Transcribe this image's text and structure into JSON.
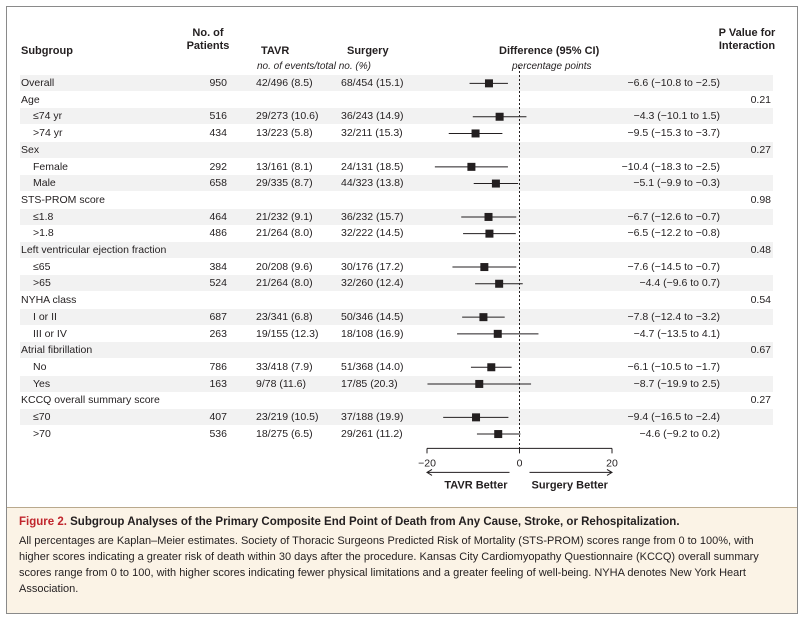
{
  "headers": {
    "subgroup": "Subgroup",
    "patients": "No. of\nPatients",
    "tavr": "TAVR",
    "surgery": "Surgery",
    "events_note": "no. of events/total no. (%)",
    "difference": "Difference (95% CI)",
    "diff_note": "percentage points",
    "pvalue": "P Value for\nInteraction"
  },
  "rows": [
    {
      "label": "Overall",
      "indent": false,
      "n": "950",
      "tavr": "42/496 (8.5)",
      "surgery": "68/454 (15.1)",
      "diff": "−6.6 (−10.8 to −2.5)",
      "p": ""
    },
    {
      "label": "Age",
      "indent": false,
      "n": "",
      "tavr": "",
      "surgery": "",
      "diff": "",
      "p": "0.21"
    },
    {
      "label": "≤74 yr",
      "indent": true,
      "n": "516",
      "tavr": "29/273 (10.6)",
      "surgery": "36/243 (14.9)",
      "diff": "−4.3 (−10.1 to 1.5)",
      "p": ""
    },
    {
      "label": ">74 yr",
      "indent": true,
      "n": "434",
      "tavr": "13/223 (5.8)",
      "surgery": "32/211 (15.3)",
      "diff": "−9.5 (−15.3 to −3.7)",
      "p": ""
    },
    {
      "label": "Sex",
      "indent": false,
      "n": "",
      "tavr": "",
      "surgery": "",
      "diff": "",
      "p": "0.27"
    },
    {
      "label": "Female",
      "indent": true,
      "n": "292",
      "tavr": "13/161 (8.1)",
      "surgery": "24/131 (18.5)",
      "diff": "−10.4 (−18.3 to −2.5)",
      "p": ""
    },
    {
      "label": "Male",
      "indent": true,
      "n": "658",
      "tavr": "29/335 (8.7)",
      "surgery": "44/323 (13.8)",
      "diff": "−5.1 (−9.9 to −0.3)",
      "p": ""
    },
    {
      "label": "STS-PROM score",
      "indent": false,
      "n": "",
      "tavr": "",
      "surgery": "",
      "diff": "",
      "p": "0.98"
    },
    {
      "label": "≤1.8",
      "indent": true,
      "n": "464",
      "tavr": "21/232 (9.1)",
      "surgery": "36/232 (15.7)",
      "diff": "−6.7 (−12.6 to −0.7)",
      "p": ""
    },
    {
      "label": ">1.8",
      "indent": true,
      "n": "486",
      "tavr": "21/264 (8.0)",
      "surgery": "32/222 (14.5)",
      "diff": "−6.5 (−12.2 to −0.8)",
      "p": ""
    },
    {
      "label": "Left ventricular ejection fraction",
      "indent": false,
      "n": "",
      "tavr": "",
      "surgery": "",
      "diff": "",
      "p": "0.48"
    },
    {
      "label": "≤65",
      "indent": true,
      "n": "384",
      "tavr": "20/208 (9.6)",
      "surgery": "30/176 (17.2)",
      "diff": "−7.6 (−14.5 to −0.7)",
      "p": ""
    },
    {
      "label": ">65",
      "indent": true,
      "n": "524",
      "tavr": "21/264 (8.0)",
      "surgery": "32/260 (12.4)",
      "diff": "−4.4 (−9.6 to 0.7)",
      "p": ""
    },
    {
      "label": "NYHA class",
      "indent": false,
      "n": "",
      "tavr": "",
      "surgery": "",
      "diff": "",
      "p": "0.54"
    },
    {
      "label": "I or II",
      "indent": true,
      "n": "687",
      "tavr": "23/341 (6.8)",
      "surgery": "50/346 (14.5)",
      "diff": "−7.8 (−12.4 to −3.2)",
      "p": ""
    },
    {
      "label": "III or IV",
      "indent": true,
      "n": "263",
      "tavr": "19/155 (12.3)",
      "surgery": "18/108 (16.9)",
      "diff": "−4.7 (−13.5 to 4.1)",
      "p": ""
    },
    {
      "label": "Atrial fibrillation",
      "indent": false,
      "n": "",
      "tavr": "",
      "surgery": "",
      "diff": "",
      "p": "0.67"
    },
    {
      "label": "No",
      "indent": true,
      "n": "786",
      "tavr": "33/418 (7.9)",
      "surgery": "51/368 (14.0)",
      "diff": "−6.1 (−10.5 to −1.7)",
      "p": ""
    },
    {
      "label": "Yes",
      "indent": true,
      "n": "163",
      "tavr": "9/78 (11.6)",
      "surgery": "17/85 (20.3)",
      "diff": "−8.7 (−19.9 to 2.5)",
      "p": ""
    },
    {
      "label": "KCCQ overall summary score",
      "indent": false,
      "n": "",
      "tavr": "",
      "surgery": "",
      "diff": "",
      "p": "0.27"
    },
    {
      "label": "≤70",
      "indent": true,
      "n": "407",
      "tavr": "23/219 (10.5)",
      "surgery": "37/188 (19.9)",
      "diff": "−9.4 (−16.5 to −2.4)",
      "p": ""
    },
    {
      "label": ">70",
      "indent": true,
      "n": "536",
      "tavr": "18/275 (6.5)",
      "surgery": "29/261 (11.2)",
      "diff": "−4.6 (−9.2 to 0.2)",
      "p": ""
    }
  ],
  "chart_data": {
    "type": "forest",
    "xlim": [
      -20,
      20
    ],
    "xticks": [
      "−20",
      "0",
      "20"
    ],
    "tick_values": [
      -20,
      0,
      20
    ],
    "reference_line": 0,
    "direction_left": "TAVR Better",
    "direction_right": "Surgery Better",
    "points": [
      {
        "row": 0,
        "est": -6.6,
        "lo": -10.8,
        "hi": -2.5
      },
      {
        "row": 2,
        "est": -4.3,
        "lo": -10.1,
        "hi": 1.5
      },
      {
        "row": 3,
        "est": -9.5,
        "lo": -15.3,
        "hi": -3.7
      },
      {
        "row": 5,
        "est": -10.4,
        "lo": -18.3,
        "hi": -2.5
      },
      {
        "row": 6,
        "est": -5.1,
        "lo": -9.9,
        "hi": -0.3
      },
      {
        "row": 8,
        "est": -6.7,
        "lo": -12.6,
        "hi": -0.7
      },
      {
        "row": 9,
        "est": -6.5,
        "lo": -12.2,
        "hi": -0.8
      },
      {
        "row": 11,
        "est": -7.6,
        "lo": -14.5,
        "hi": -0.7
      },
      {
        "row": 12,
        "est": -4.4,
        "lo": -9.6,
        "hi": 0.7
      },
      {
        "row": 14,
        "est": -7.8,
        "lo": -12.4,
        "hi": -3.2
      },
      {
        "row": 15,
        "est": -4.7,
        "lo": -13.5,
        "hi": 4.1
      },
      {
        "row": 17,
        "est": -6.1,
        "lo": -10.5,
        "hi": -1.7
      },
      {
        "row": 18,
        "est": -8.7,
        "lo": -19.9,
        "hi": 2.5
      },
      {
        "row": 20,
        "est": -9.4,
        "lo": -16.5,
        "hi": -2.4
      },
      {
        "row": 21,
        "est": -4.6,
        "lo": -9.2,
        "hi": 0.2
      }
    ]
  },
  "caption": {
    "figure_label": "Figure 2.",
    "title": "Subgroup Analyses of the Primary Composite End Point of Death from Any Cause, Stroke, or Rehospitalization.",
    "body": "All percentages are Kaplan–Meier estimates. Society of Thoracic Surgeons Predicted Risk of Mortality (STS-PROM) scores range from 0 to 100%, with higher scores indicating a greater risk of death within 30 days after the procedure. Kansas City Cardiomyopathy Questionnaire (KCCQ) overall summary scores range from 0 to 100, with higher scores indicating fewer physical limitations and a greater feeling of well-being. NYHA denotes New York Heart Association."
  }
}
